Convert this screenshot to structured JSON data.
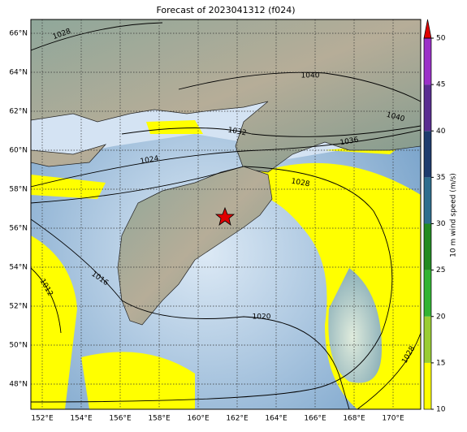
{
  "title": "Forecast of 2023041312 (f024)",
  "lat_labels": [
    "66°N",
    "64°N",
    "62°N",
    "60°N",
    "58°N",
    "56°N",
    "54°N",
    "52°N",
    "50°N",
    "48°N"
  ],
  "lon_labels": [
    "152°E",
    "154°E",
    "156°E",
    "158°E",
    "160°E",
    "162°E",
    "164°E",
    "166°E",
    "168°E",
    "170°E"
  ],
  "contour_labels": [
    "1028",
    "1040",
    "1040",
    "1032",
    "1036",
    "1024",
    "1028",
    "1012",
    "1016",
    "1020",
    "1028"
  ],
  "colorbar": {
    "label": "10 m wind speed (m/s)",
    "range": [
      10,
      50
    ],
    "ticks": [
      10,
      15,
      20,
      25,
      30,
      35,
      40,
      45,
      50
    ],
    "colors": [
      "#ffff00",
      "#9acd32",
      "#32b432",
      "#228b22",
      "#2e6e8e",
      "#1e3c6e",
      "#5a2d91",
      "#9b30c8"
    ],
    "extend_color": "#e00000"
  }
}
